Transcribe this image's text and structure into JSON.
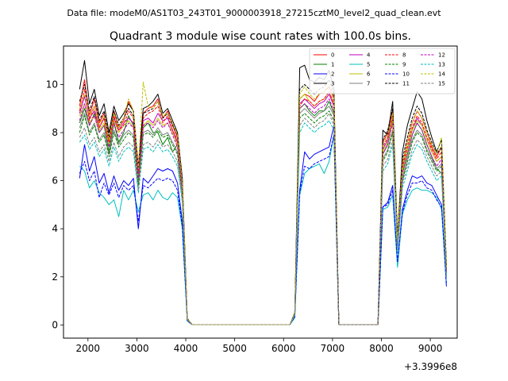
{
  "chart_data": {
    "type": "line",
    "suptitle": "Data file: modeM0/AS1T03_243T01_9000003918_27215cztM0_level2_quad_clean.evt",
    "title": "Quadrant 3 module wise count rates with 100.0s bins.",
    "xlabel": "",
    "ylabel": "",
    "x_offset_label": "+3.3996e8",
    "xlim": [
      1500,
      9550
    ],
    "ylim": [
      -0.55,
      11.6
    ],
    "xticks": [
      2000,
      3000,
      4000,
      5000,
      6000,
      7000,
      8000,
      9000
    ],
    "xtick_labels": [
      "2000",
      "3000",
      "4000",
      "5000",
      "6000",
      "7000",
      "8000",
      "9000"
    ],
    "yticks": [
      0,
      2,
      4,
      6,
      8,
      10
    ],
    "ytick_labels": [
      "0",
      "2",
      "4",
      "6",
      "8",
      "10"
    ],
    "legend_position": "top-right",
    "x": [
      1830,
      1930,
      2030,
      2130,
      2230,
      2330,
      2430,
      2530,
      2630,
      2730,
      2830,
      2930,
      3030,
      3130,
      3230,
      3330,
      3430,
      3530,
      3630,
      3730,
      3830,
      3930,
      4030,
      4130,
      6130,
      6230,
      6330,
      6430,
      6530,
      6630,
      6730,
      6830,
      6930,
      7030,
      7130,
      7930,
      8030,
      8130,
      8230,
      8330,
      8430,
      8530,
      8630,
      8730,
      8830,
      8930,
      9030,
      9130,
      9230,
      9330
    ],
    "series": [
      {
        "name": "0",
        "color": "#ff0000",
        "dash": "solid",
        "values": [
          9.1,
          10.2,
          8.7,
          9.4,
          8.4,
          8.8,
          7.7,
          8.9,
          8.2,
          8.5,
          9.3,
          8.9,
          6.4,
          8.8,
          9.0,
          9.1,
          9.4,
          8.6,
          8.9,
          8.3,
          7.8,
          5.8,
          0.26,
          0.01,
          0.01,
          0.45,
          9.4,
          9.6,
          9.5,
          9.3,
          9.6,
          9.7,
          9.9,
          9.4,
          0.01,
          0.01,
          7.6,
          8.0,
          8.9,
          3.5,
          6.7,
          7.6,
          8.4,
          8.9,
          8.6,
          8.0,
          7.4,
          7.0,
          7.4,
          2.3
        ]
      },
      {
        "name": "1",
        "color": "#008000",
        "dash": "solid",
        "values": [
          8.4,
          9.0,
          8.3,
          8.8,
          8.0,
          8.3,
          7.2,
          8.4,
          7.6,
          8.0,
          8.7,
          8.3,
          6.0,
          8.2,
          8.4,
          8.0,
          8.0,
          7.5,
          7.8,
          7.2,
          7.5,
          5.6,
          0.24,
          0.01,
          0.01,
          0.45,
          9.0,
          9.2,
          8.9,
          8.7,
          8.9,
          8.9,
          9.3,
          8.8,
          0.01,
          0.01,
          7.1,
          7.5,
          8.5,
          3.3,
          6.3,
          7.1,
          7.9,
          8.4,
          8.1,
          7.5,
          7.0,
          6.5,
          6.3,
          2.2
        ]
      },
      {
        "name": "2",
        "color": "#0000ff",
        "dash": "solid",
        "values": [
          6.1,
          7.5,
          6.4,
          7.0,
          5.9,
          6.3,
          5.5,
          6.2,
          5.6,
          6.0,
          5.8,
          6.1,
          4.0,
          6.1,
          5.9,
          6.2,
          6.5,
          6.4,
          6.5,
          6.4,
          5.9,
          4.3,
          0.18,
          0.01,
          0.01,
          0.35,
          5.6,
          7.2,
          6.9,
          7.1,
          7.2,
          7.3,
          7.4,
          8.3,
          0.01,
          0.01,
          4.9,
          5.1,
          5.8,
          2.5,
          4.8,
          5.6,
          6.2,
          6.1,
          6.2,
          5.9,
          5.8,
          5.4,
          5.0,
          1.6
        ]
      },
      {
        "name": "3",
        "color": "#000000",
        "dash": "solid",
        "values": [
          9.8,
          11.0,
          9.2,
          9.8,
          8.7,
          9.2,
          8.0,
          9.1,
          8.5,
          8.8,
          9.2,
          8.9,
          6.6,
          9.0,
          9.1,
          9.3,
          9.6,
          8.8,
          9.0,
          8.5,
          8.0,
          6.1,
          0.27,
          0.01,
          0.01,
          0.5,
          10.7,
          10.8,
          10.2,
          10.1,
          10.3,
          10.2,
          10.6,
          9.8,
          0.01,
          0.01,
          8.1,
          7.9,
          9.3,
          3.6,
          7.2,
          8.3,
          9.0,
          9.7,
          9.4,
          8.5,
          7.8,
          7.2,
          7.7,
          2.5
        ]
      },
      {
        "name": "4",
        "color": "#bf00bf",
        "dash": "solid",
        "values": [
          8.8,
          9.5,
          8.6,
          8.9,
          8.2,
          8.6,
          7.6,
          8.6,
          8.1,
          8.4,
          8.6,
          8.4,
          6.3,
          8.5,
          8.6,
          8.4,
          8.8,
          8.5,
          8.6,
          8.1,
          7.6,
          5.8,
          0.25,
          0.01,
          0.01,
          0.45,
          9.2,
          9.4,
          9.2,
          9.0,
          9.2,
          9.3,
          9.6,
          9.1,
          0.01,
          0.01,
          7.3,
          7.7,
          8.6,
          3.4,
          6.5,
          7.3,
          8.1,
          8.6,
          8.3,
          7.7,
          7.2,
          6.8,
          7.0,
          2.3
        ]
      },
      {
        "name": "5",
        "color": "#00bfbf",
        "dash": "solid",
        "values": [
          6.6,
          6.4,
          5.7,
          6.0,
          5.5,
          5.3,
          5.0,
          5.2,
          4.5,
          5.6,
          5.2,
          5.6,
          4.7,
          5.4,
          5.5,
          5.2,
          5.6,
          5.3,
          5.2,
          5.5,
          5.3,
          4.0,
          0.16,
          0.01,
          0.01,
          0.3,
          5.4,
          6.3,
          6.5,
          6.6,
          6.7,
          6.3,
          6.8,
          7.9,
          0.01,
          0.01,
          4.8,
          4.9,
          5.4,
          2.4,
          4.6,
          5.2,
          5.6,
          5.7,
          5.6,
          5.6,
          5.5,
          5.3,
          4.8,
          1.7
        ]
      },
      {
        "name": "6",
        "color": "#bfbf00",
        "dash": "solid",
        "values": [
          8.7,
          9.2,
          8.4,
          8.7,
          8.1,
          8.4,
          7.5,
          8.5,
          8.0,
          8.3,
          8.5,
          8.2,
          6.2,
          8.3,
          8.5,
          8.3,
          8.6,
          8.3,
          8.4,
          8.0,
          7.5,
          5.7,
          0.25,
          0.01,
          0.01,
          0.45,
          9.4,
          9.6,
          9.3,
          9.1,
          9.3,
          9.4,
          9.7,
          9.2,
          0.01,
          0.01,
          7.2,
          7.6,
          8.5,
          3.4,
          6.4,
          7.3,
          8.1,
          8.5,
          8.3,
          7.7,
          7.2,
          6.8,
          7.0,
          2.3
        ]
      },
      {
        "name": "7",
        "color": "#808080",
        "dash": "solid",
        "values": [
          8.2,
          8.8,
          8.0,
          8.4,
          7.7,
          8.0,
          7.1,
          8.1,
          7.5,
          7.9,
          8.1,
          7.9,
          5.9,
          8.0,
          8.1,
          7.9,
          8.2,
          7.9,
          8.0,
          7.6,
          7.2,
          5.5,
          0.23,
          0.01,
          0.01,
          0.42,
          8.8,
          9.0,
          8.8,
          8.6,
          8.8,
          8.9,
          9.1,
          8.7,
          0.01,
          0.01,
          6.9,
          7.3,
          8.1,
          3.2,
          6.1,
          6.9,
          7.7,
          8.1,
          7.9,
          7.3,
          6.9,
          6.5,
          6.7,
          2.2
        ]
      },
      {
        "name": "8",
        "color": "#ff0000",
        "dash": "dashed",
        "values": [
          8.9,
          9.8,
          8.5,
          9.1,
          8.2,
          8.6,
          7.6,
          8.7,
          8.1,
          8.3,
          8.9,
          8.6,
          6.3,
          8.6,
          8.8,
          8.9,
          9.1,
          8.4,
          8.7,
          8.1,
          7.7,
          5.8,
          0.25,
          0.01,
          0.01,
          0.45,
          9.1,
          9.4,
          9.3,
          9.1,
          9.3,
          9.4,
          9.7,
          9.2,
          0.01,
          0.01,
          7.4,
          7.8,
          8.7,
          3.4,
          6.6,
          7.4,
          8.2,
          8.7,
          8.4,
          7.8,
          7.3,
          6.9,
          7.2,
          2.3
        ]
      },
      {
        "name": "9",
        "color": "#008000",
        "dash": "dashed",
        "values": [
          8.0,
          8.7,
          7.9,
          8.3,
          7.6,
          7.9,
          7.0,
          8.0,
          7.4,
          7.7,
          8.0,
          7.8,
          5.8,
          7.9,
          8.0,
          7.8,
          8.1,
          7.8,
          7.9,
          7.5,
          7.1,
          5.4,
          0.23,
          0.01,
          0.01,
          0.42,
          8.6,
          8.8,
          8.6,
          8.4,
          8.6,
          8.7,
          8.9,
          8.5,
          0.01,
          0.01,
          6.8,
          7.2,
          8.0,
          3.2,
          6.0,
          6.8,
          7.6,
          8.0,
          7.8,
          7.2,
          6.8,
          6.4,
          6.6,
          2.1
        ]
      },
      {
        "name": "10",
        "color": "#0000ff",
        "dash": "dashed",
        "values": [
          6.3,
          6.8,
          6.0,
          6.4,
          5.3,
          5.9,
          5.4,
          5.9,
          5.3,
          5.8,
          5.6,
          5.8,
          4.3,
          5.8,
          5.7,
          5.9,
          6.1,
          6.0,
          6.1,
          6.0,
          5.6,
          4.1,
          0.17,
          0.01,
          0.01,
          0.33,
          5.5,
          6.6,
          6.5,
          6.7,
          6.8,
          6.9,
          7.0,
          7.9,
          0.01,
          0.01,
          4.9,
          5.0,
          5.6,
          2.6,
          4.7,
          5.4,
          5.9,
          5.9,
          6.0,
          5.7,
          5.6,
          5.2,
          4.9,
          1.7
        ]
      },
      {
        "name": "11",
        "color": "#000000",
        "dash": "dashed",
        "values": [
          9.3,
          10.0,
          8.9,
          9.5,
          8.5,
          8.9,
          7.8,
          8.9,
          8.3,
          8.6,
          9.0,
          8.7,
          6.5,
          8.8,
          8.9,
          9.0,
          9.3,
          8.6,
          8.8,
          8.3,
          7.9,
          6.0,
          0.26,
          0.01,
          0.01,
          0.48,
          9.8,
          10.0,
          9.8,
          9.6,
          9.8,
          9.9,
          10.2,
          9.6,
          0.01,
          0.01,
          7.7,
          8.1,
          9.0,
          3.5,
          6.9,
          7.8,
          8.6,
          9.1,
          8.8,
          8.1,
          7.6,
          7.1,
          7.4,
          2.4
        ]
      },
      {
        "name": "12",
        "color": "#bf00bf",
        "dash": "dashed",
        "values": [
          8.5,
          9.2,
          8.3,
          8.7,
          8.0,
          8.3,
          7.4,
          8.4,
          7.8,
          8.1,
          8.4,
          8.2,
          6.1,
          8.3,
          8.4,
          8.2,
          8.5,
          8.2,
          8.4,
          7.9,
          7.4,
          5.6,
          0.24,
          0.01,
          0.01,
          0.44,
          9.0,
          9.2,
          9.0,
          8.8,
          9.0,
          9.1,
          9.4,
          8.9,
          0.01,
          0.01,
          7.1,
          7.5,
          8.4,
          3.3,
          6.3,
          7.1,
          7.9,
          8.4,
          8.1,
          7.5,
          7.0,
          6.6,
          6.9,
          2.2
        ]
      },
      {
        "name": "13",
        "color": "#00bfbf",
        "dash": "dashed",
        "values": [
          7.6,
          7.9,
          7.3,
          7.6,
          7.0,
          7.3,
          6.6,
          7.4,
          6.8,
          7.2,
          7.4,
          7.2,
          5.5,
          7.3,
          7.4,
          7.2,
          7.5,
          7.2,
          7.3,
          7.0,
          6.6,
          5.1,
          0.21,
          0.01,
          0.01,
          0.4,
          8.0,
          8.4,
          8.2,
          8.0,
          8.2,
          8.3,
          8.5,
          8.1,
          0.01,
          0.01,
          6.4,
          6.7,
          7.5,
          3.0,
          5.7,
          6.4,
          7.1,
          7.5,
          7.3,
          6.8,
          6.4,
          6.0,
          6.2,
          2.0
        ]
      },
      {
        "name": "14",
        "color": "#bfbf00",
        "dash": "dashed",
        "values": [
          9.0,
          9.6,
          8.7,
          9.1,
          8.3,
          8.7,
          7.7,
          8.8,
          8.2,
          8.6,
          9.4,
          8.9,
          6.5,
          10.1,
          9.1,
          9.0,
          9.3,
          8.7,
          8.8,
          8.4,
          7.9,
          5.9,
          0.26,
          0.01,
          0.01,
          0.46,
          9.6,
          9.9,
          9.6,
          9.4,
          9.6,
          9.7,
          10.0,
          9.5,
          0.01,
          0.01,
          7.5,
          7.9,
          8.8,
          3.5,
          6.7,
          7.6,
          8.4,
          8.9,
          8.6,
          8.0,
          7.5,
          7.1,
          7.8,
          2.4
        ]
      },
      {
        "name": "15",
        "color": "#808080",
        "dash": "dashed",
        "values": [
          7.8,
          8.2,
          7.5,
          7.8,
          7.2,
          7.5,
          6.8,
          7.6,
          7.0,
          7.4,
          7.6,
          7.4,
          5.6,
          7.5,
          7.6,
          7.4,
          7.7,
          7.4,
          7.5,
          7.2,
          6.8,
          5.2,
          0.22,
          0.01,
          0.01,
          0.41,
          8.3,
          8.6,
          8.4,
          8.2,
          8.4,
          8.5,
          8.8,
          8.3,
          0.01,
          0.01,
          6.6,
          6.9,
          7.7,
          3.1,
          5.9,
          6.6,
          7.3,
          7.7,
          7.5,
          7.0,
          6.6,
          6.2,
          6.4,
          2.0
        ]
      }
    ]
  }
}
